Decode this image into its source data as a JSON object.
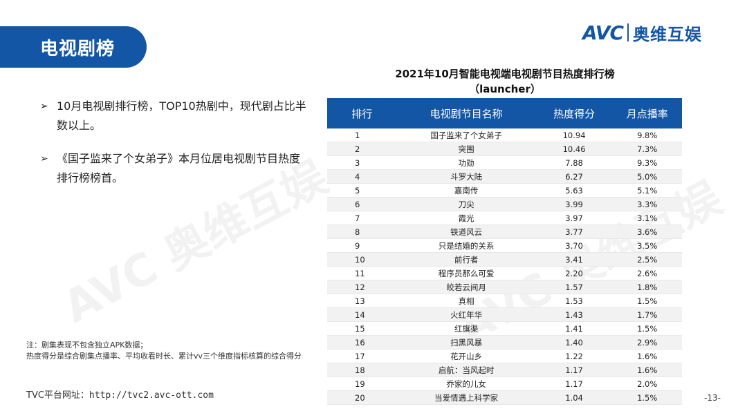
{
  "header": {
    "title": "电视剧榜"
  },
  "logo": {
    "latin": "AVC",
    "chinese": "奥维互娱"
  },
  "bullets": [
    "10月电视剧排行榜，TOP10热剧中，现代剧占比半数以上。",
    "《国子监来了个女弟子》本月位居电视剧节目热度排行榜榜首。"
  ],
  "table": {
    "title_line1": "2021年10月智能电视端电视剧节目热度排行榜",
    "title_line2": "（launcher）",
    "headers": [
      "排行",
      "电视剧节目名称",
      "热度得分",
      "月点播率"
    ],
    "rows": [
      [
        "1",
        "国子监来了个女弟子",
        "10.94",
        "9.8%"
      ],
      [
        "2",
        "突围",
        "10.46",
        "7.3%"
      ],
      [
        "3",
        "功勋",
        "7.88",
        "9.3%"
      ],
      [
        "4",
        "斗罗大陆",
        "6.27",
        "5.0%"
      ],
      [
        "5",
        "嘉南传",
        "5.63",
        "5.1%"
      ],
      [
        "6",
        "刀尖",
        "3.99",
        "3.3%"
      ],
      [
        "7",
        "霞光",
        "3.97",
        "3.1%"
      ],
      [
        "8",
        "铁道风云",
        "3.77",
        "3.6%"
      ],
      [
        "9",
        "只是结婚的关系",
        "3.70",
        "3.5%"
      ],
      [
        "10",
        "前行者",
        "3.41",
        "2.5%"
      ],
      [
        "11",
        "程序员那么可爱",
        "2.20",
        "2.6%"
      ],
      [
        "12",
        "皎若云间月",
        "1.57",
        "1.8%"
      ],
      [
        "13",
        "真相",
        "1.53",
        "1.5%"
      ],
      [
        "14",
        "火红年华",
        "1.43",
        "1.7%"
      ],
      [
        "15",
        "红旗渠",
        "1.41",
        "1.5%"
      ],
      [
        "16",
        "扫黑风暴",
        "1.40",
        "2.9%"
      ],
      [
        "17",
        "花开山乡",
        "1.22",
        "1.6%"
      ],
      [
        "18",
        "启航：当风起时",
        "1.17",
        "1.6%"
      ],
      [
        "19",
        "乔家的儿女",
        "1.17",
        "2.0%"
      ],
      [
        "20",
        "当爱情遇上科学家",
        "1.04",
        "1.5%"
      ]
    ]
  },
  "note": {
    "line1": "注：剧集表现不包含独立APK数据；",
    "line2": "热度得分是综合剧集点播率、平均收看时长、累计vv三个维度指标核算的综合得分"
  },
  "footer": {
    "site_label": "TVC平台网址：",
    "site_url": "http://tvc2.avc-ott.com",
    "page_number": "-13-"
  },
  "watermark": "AVC 奥维互娱",
  "colors": {
    "brand": "#1456a6",
    "accent": "#e64a19"
  }
}
